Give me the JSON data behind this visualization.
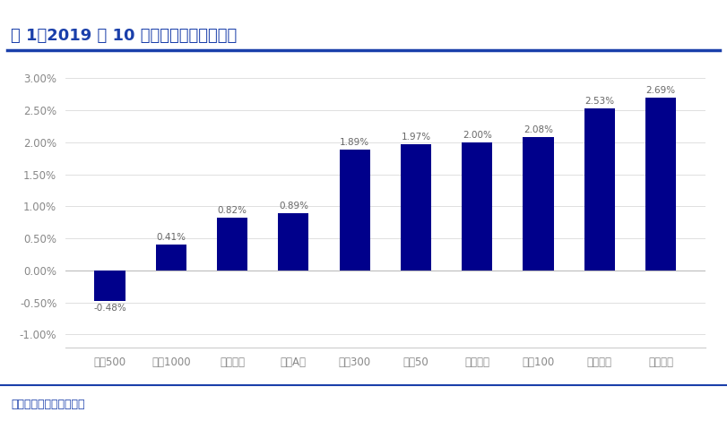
{
  "title": "图 1：2019 年 10 月份主要规模指数表现",
  "categories": [
    "中证500",
    "中证1000",
    "上证综指",
    "申万A股",
    "沪深300",
    "上证50",
    "深证成指",
    "中证100",
    "中小板指",
    "创业板指"
  ],
  "values": [
    -0.0048,
    0.0041,
    0.0082,
    0.0089,
    0.0189,
    0.0197,
    0.02,
    0.0208,
    0.0253,
    0.0269
  ],
  "labels": [
    "-0.48%",
    "0.41%",
    "0.82%",
    "0.89%",
    "1.89%",
    "1.97%",
    "2.00%",
    "2.08%",
    "2.53%",
    "2.69%"
  ],
  "bar_color": "#00008B",
  "background_color": "#ffffff",
  "title_color": "#1a3faa",
  "title_fontsize": 13,
  "ylabel_ticks": [
    "-1.00%",
    "-0.50%",
    "0.00%",
    "0.50%",
    "1.00%",
    "1.50%",
    "2.00%",
    "2.50%",
    "3.00%"
  ],
  "ylim": [
    -0.012,
    0.032
  ],
  "yticks": [
    -0.01,
    -0.005,
    0.0,
    0.005,
    0.01,
    0.015,
    0.02,
    0.025,
    0.03
  ],
  "footer_text": "资料来源：申万宏源研究",
  "header_line_color": "#1a3faa",
  "footer_line_color": "#1a3faa",
  "grid_color": "#e0e0e0",
  "tick_label_color": "#888888",
  "value_label_color": "#666666"
}
